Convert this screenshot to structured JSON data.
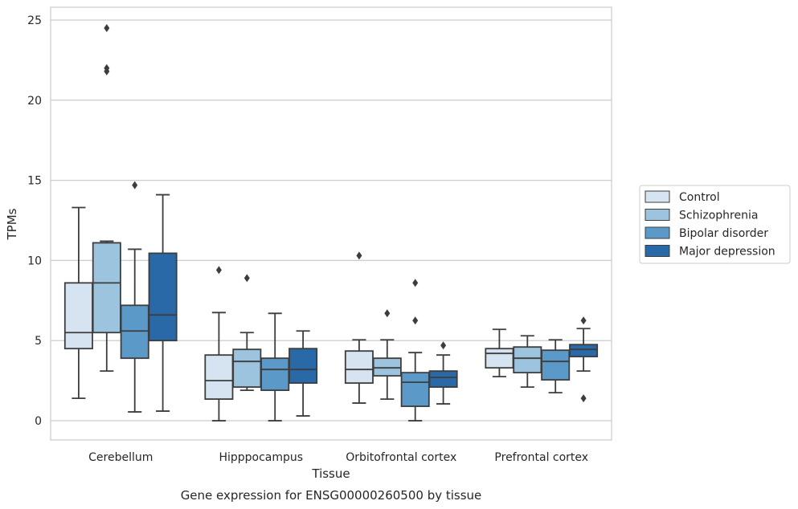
{
  "caption": "Gene expression for ENSG00000260500 by tissue",
  "chart_data": {
    "type": "box",
    "xlabel": "Tissue",
    "ylabel": "TPMs",
    "ylim": [
      -1.2,
      25.8
    ],
    "yticks": [
      0,
      5,
      10,
      15,
      20,
      25
    ],
    "grid": "horizontal",
    "legend_position": "right",
    "categories": [
      "Cerebellum",
      "Hipppocampus",
      "Orbitofrontal cortex",
      "Prefrontal cortex"
    ],
    "series": [
      {
        "name": "Control",
        "color": "#d6e4f2",
        "boxes": [
          {
            "whislo": 1.4,
            "q1": 4.5,
            "med": 5.5,
            "q3": 8.6,
            "whishi": 13.3,
            "fliers": []
          },
          {
            "whislo": 0.0,
            "q1": 1.35,
            "med": 2.5,
            "q3": 4.1,
            "whishi": 6.75,
            "fliers": [
              9.4
            ]
          },
          {
            "whislo": 1.1,
            "q1": 2.35,
            "med": 3.2,
            "q3": 4.35,
            "whishi": 5.05,
            "fliers": [
              10.3
            ]
          },
          {
            "whislo": 2.75,
            "q1": 3.3,
            "med": 4.2,
            "q3": 4.5,
            "whishi": 5.7,
            "fliers": []
          }
        ]
      },
      {
        "name": "Schizophrenia",
        "color": "#9dc4de",
        "boxes": [
          {
            "whislo": 3.1,
            "q1": 5.5,
            "med": 8.6,
            "q3": 11.1,
            "whishi": 11.2,
            "fliers": [
              21.8,
              22.0,
              24.5
            ]
          },
          {
            "whislo": 1.9,
            "q1": 2.1,
            "med": 3.7,
            "q3": 4.45,
            "whishi": 5.5,
            "fliers": [
              8.9
            ]
          },
          {
            "whislo": 1.35,
            "q1": 2.8,
            "med": 3.3,
            "q3": 3.9,
            "whishi": 5.05,
            "fliers": [
              6.7
            ]
          },
          {
            "whislo": 2.1,
            "q1": 3.0,
            "med": 3.9,
            "q3": 4.6,
            "whishi": 5.3,
            "fliers": []
          }
        ]
      },
      {
        "name": "Bipolar disorder",
        "color": "#5b9ac8",
        "boxes": [
          {
            "whislo": 0.55,
            "q1": 3.9,
            "med": 5.6,
            "q3": 7.2,
            "whishi": 10.7,
            "fliers": [
              14.7
            ]
          },
          {
            "whislo": 0.0,
            "q1": 1.9,
            "med": 3.2,
            "q3": 3.9,
            "whishi": 6.7,
            "fliers": []
          },
          {
            "whislo": 0.0,
            "q1": 0.9,
            "med": 2.4,
            "q3": 3.0,
            "whishi": 4.25,
            "fliers": [
              6.25,
              8.6
            ]
          },
          {
            "whislo": 1.75,
            "q1": 2.55,
            "med": 3.7,
            "q3": 4.4,
            "whishi": 5.05,
            "fliers": []
          }
        ]
      },
      {
        "name": "Major depression",
        "color": "#2a69a8",
        "boxes": [
          {
            "whislo": 0.6,
            "q1": 5.0,
            "med": 6.6,
            "q3": 10.45,
            "whishi": 14.1,
            "fliers": []
          },
          {
            "whislo": 0.3,
            "q1": 2.35,
            "med": 3.2,
            "q3": 4.5,
            "whishi": 5.6,
            "fliers": []
          },
          {
            "whislo": 1.05,
            "q1": 2.1,
            "med": 2.7,
            "q3": 3.1,
            "whishi": 4.1,
            "fliers": [
              4.7
            ]
          },
          {
            "whislo": 3.1,
            "q1": 4.0,
            "med": 4.45,
            "q3": 4.75,
            "whishi": 5.75,
            "fliers": [
              1.4,
              6.25
            ]
          }
        ]
      }
    ]
  }
}
